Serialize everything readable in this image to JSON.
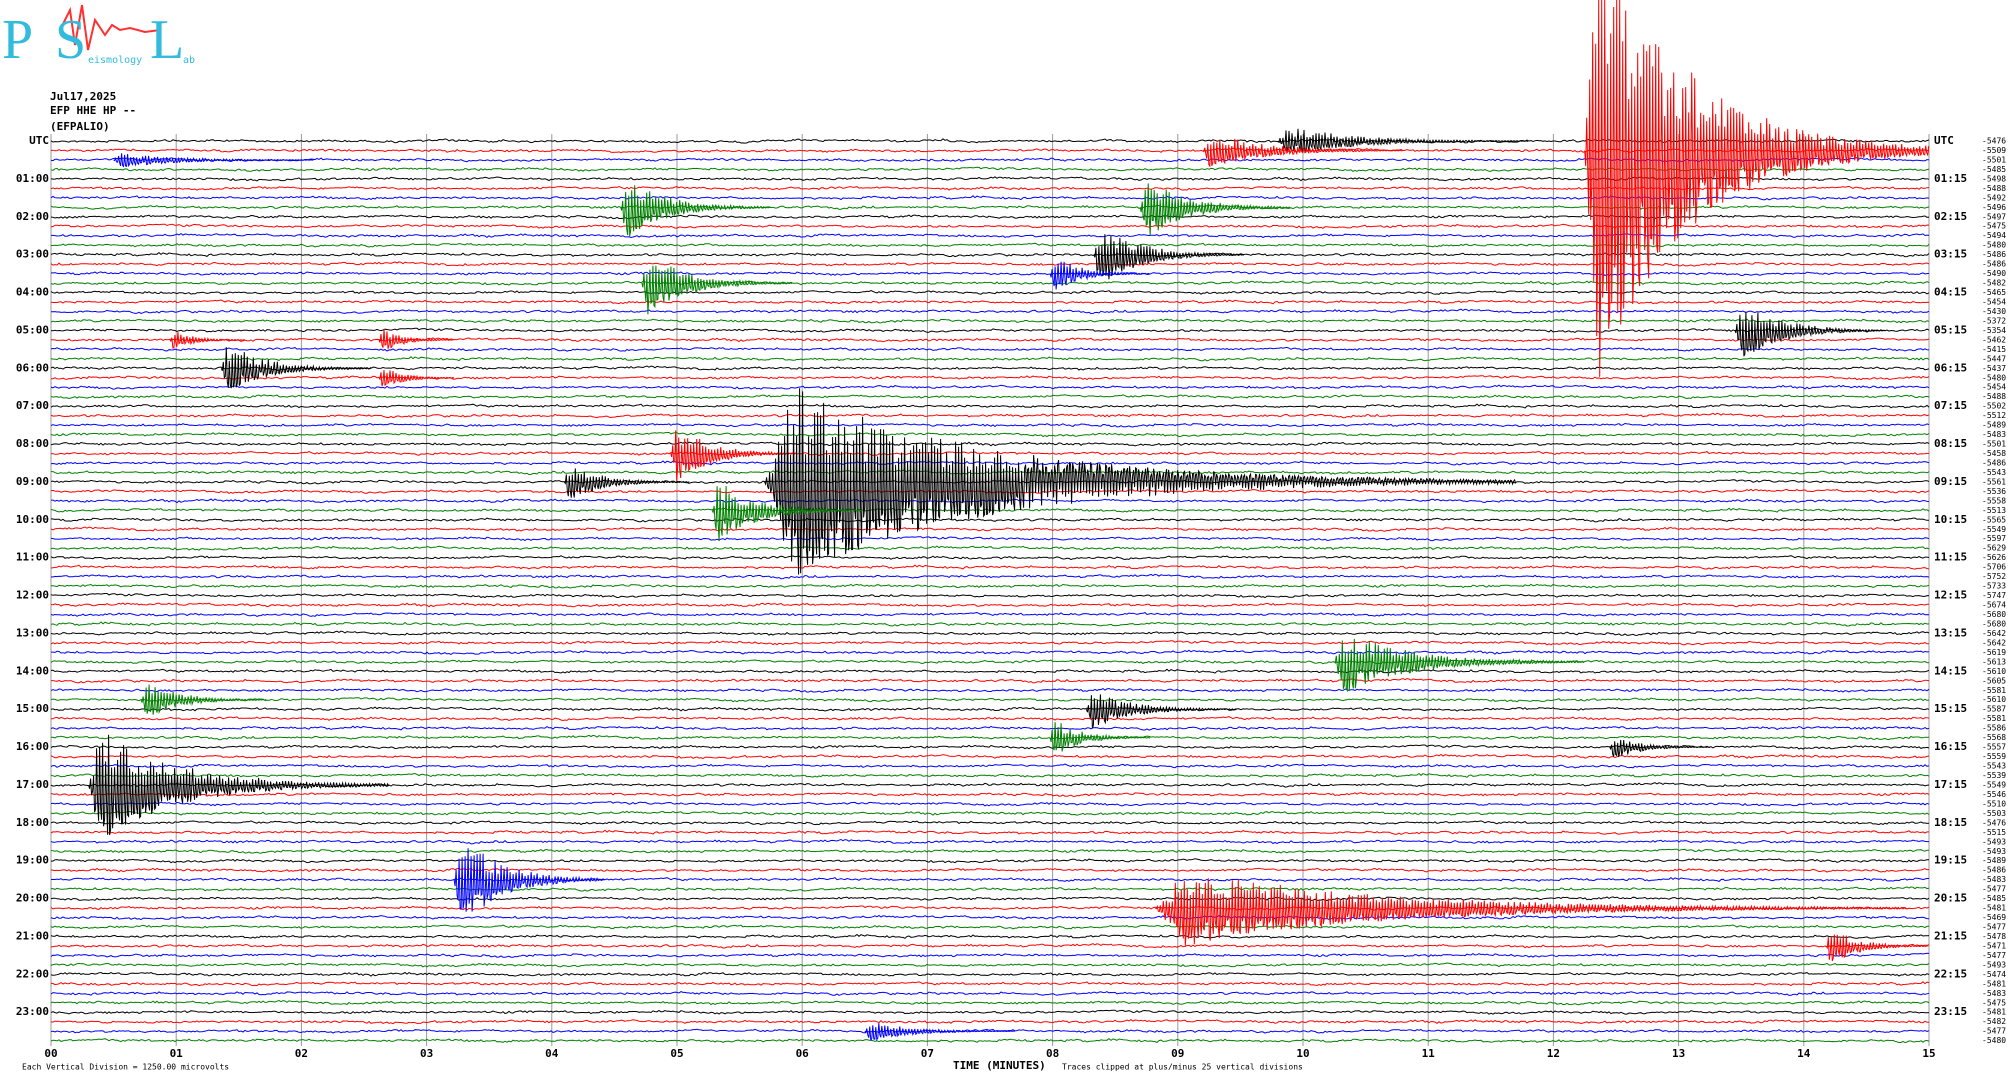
{
  "header": {
    "date": "Jul17,2025",
    "channel": "EFP HHE HP --",
    "station": "(EFPALIO)"
  },
  "logo": {
    "letters": [
      "P",
      "S",
      "L"
    ],
    "words": [
      "eismology",
      "ab"
    ]
  },
  "chart_data": {
    "type": "helicorder",
    "colors": [
      "#000000",
      "#ff0000",
      "#0000ff",
      "#008000"
    ],
    "xlim": [
      0,
      15
    ],
    "xticks": [
      {
        "value": 0,
        "label": "00"
      },
      {
        "value": 1,
        "label": "01"
      },
      {
        "value": 2,
        "label": "02"
      },
      {
        "value": 3,
        "label": "03"
      },
      {
        "value": 4,
        "label": "04"
      },
      {
        "value": 5,
        "label": "05"
      },
      {
        "value": 6,
        "label": "06"
      },
      {
        "value": 7,
        "label": "07"
      },
      {
        "value": 8,
        "label": "08"
      },
      {
        "value": 9,
        "label": "09"
      },
      10,
      11,
      12,
      13,
      14,
      15
    ],
    "grid": true,
    "x_label": "TIME (MINUTES)",
    "left_labels": [
      "UTC",
      "01:00",
      "02:00",
      "03:00",
      "04:00",
      "05:00",
      "06:00",
      "07:00",
      "08:00",
      "09:00",
      "10:00",
      "11:00",
      "12:00",
      "13:00",
      "14:00",
      "15:00",
      "16:00",
      "17:00",
      "18:00",
      "19:00",
      "20:00",
      "21:00",
      "22:00",
      "23:00"
    ],
    "right_labels": [
      "UTC",
      "01:15",
      "02:15",
      "03:15",
      "04:15",
      "05:15",
      "06:15",
      "07:15",
      "08:15",
      "09:15",
      "10:15",
      "11:15",
      "12:15",
      "13:15",
      "14:15",
      "15:15",
      "16:15",
      "17:15",
      "18:15",
      "19:15",
      "20:15",
      "21:15",
      "22:15",
      "23:15"
    ],
    "row_values": [
      -5476,
      -5509,
      -5501,
      -5485,
      -5498,
      -5488,
      -5492,
      -5496,
      -5497,
      -5475,
      -5494,
      -5480,
      -5486,
      -5486,
      -5490,
      -5482,
      -5465,
      -5454,
      -5430,
      -5372,
      -5354,
      -5462,
      -5415,
      -5447,
      -5437,
      -5480,
      -5454,
      -5488,
      -5502,
      -5512,
      -5489,
      -5483,
      -5501,
      -5458,
      -5486,
      -5543,
      -5561,
      -5536,
      -5558,
      -5513,
      -5565,
      -5549,
      -5597,
      -5629,
      -5626,
      -5706,
      -5752,
      -5733,
      -5747,
      -5674,
      -5680,
      -5680,
      -5642,
      -5642,
      -5619,
      -5613,
      -5610,
      -5605,
      -5581,
      -5610,
      -5587,
      -5581,
      -5586,
      -5568,
      -5557,
      -5559,
      -5543,
      -5539,
      -5549,
      -5546,
      -5510,
      -5503,
      -5476,
      -5515,
      -5493,
      -5493,
      -5489,
      -5486,
      -5483,
      -5477,
      -5485,
      -5481,
      -5469,
      -5477,
      -5478,
      -5471,
      -5477,
      -5493,
      -5474,
      -5481,
      -5483,
      -5475,
      -5481,
      -5482,
      -5477,
      -5480
    ],
    "events": [
      {
        "row": 0,
        "minute": 9.8,
        "amplitude": 12,
        "duration": 0.5
      },
      {
        "row": 1,
        "minute": 12.25,
        "amplitude": 180,
        "duration": 1.2
      },
      {
        "row": 1,
        "minute": 9.2,
        "amplitude": 15,
        "duration": 0.4
      },
      {
        "row": 2,
        "minute": 0.5,
        "amplitude": 6,
        "duration": 0.4
      },
      {
        "row": 7,
        "minute": 4.55,
        "amplitude": 25,
        "duration": 0.3
      },
      {
        "row": 7,
        "minute": 8.7,
        "amplitude": 25,
        "duration": 0.3
      },
      {
        "row": 12,
        "minute": 8.33,
        "amplitude": 25,
        "duration": 0.3
      },
      {
        "row": 14,
        "minute": 7.98,
        "amplitude": 15,
        "duration": 0.2
      },
      {
        "row": 15,
        "minute": 4.72,
        "amplitude": 25,
        "duration": 0.3
      },
      {
        "row": 20,
        "minute": 13.45,
        "amplitude": 25,
        "duration": 0.3
      },
      {
        "row": 21,
        "minute": 0.95,
        "amplitude": 8,
        "duration": 0.15
      },
      {
        "row": 21,
        "minute": 2.62,
        "amplitude": 10,
        "duration": 0.15
      },
      {
        "row": 24,
        "minute": 1.36,
        "amplitude": 20,
        "duration": 0.3
      },
      {
        "row": 25,
        "minute": 2.62,
        "amplitude": 10,
        "duration": 0.15
      },
      {
        "row": 33,
        "minute": 4.95,
        "amplitude": 25,
        "duration": 0.25
      },
      {
        "row": 36,
        "minute": 5.7,
        "amplitude": 75,
        "duration": 1.5
      },
      {
        "row": 36,
        "minute": 4.1,
        "amplitude": 15,
        "duration": 0.25
      },
      {
        "row": 39,
        "minute": 5.28,
        "amplitude": 25,
        "duration": 0.3
      },
      {
        "row": 55,
        "minute": 10.25,
        "amplitude": 25,
        "duration": 0.5
      },
      {
        "row": 59,
        "minute": 0.72,
        "amplitude": 15,
        "duration": 0.25
      },
      {
        "row": 60,
        "minute": 8.27,
        "amplitude": 15,
        "duration": 0.3
      },
      {
        "row": 63,
        "minute": 7.98,
        "amplitude": 15,
        "duration": 0.2
      },
      {
        "row": 64,
        "minute": 12.45,
        "amplitude": 10,
        "duration": 0.2
      },
      {
        "row": 68,
        "minute": 0.3,
        "amplitude": 45,
        "duration": 0.6
      },
      {
        "row": 78,
        "minute": 3.22,
        "amplitude": 40,
        "duration": 0.3
      },
      {
        "row": 81,
        "minute": 8.82,
        "amplitude": 30,
        "duration": 1.5
      },
      {
        "row": 85,
        "minute": 14.18,
        "amplitude": 15,
        "duration": 0.5
      },
      {
        "row": 94,
        "minute": 6.5,
        "amplitude": 8,
        "duration": 0.3
      }
    ]
  },
  "footer": {
    "scale_note": "Each Vertical Division = 1250.00 microvolts",
    "clip_note": "Traces clipped at plus/minus 25 vertical divisions"
  }
}
